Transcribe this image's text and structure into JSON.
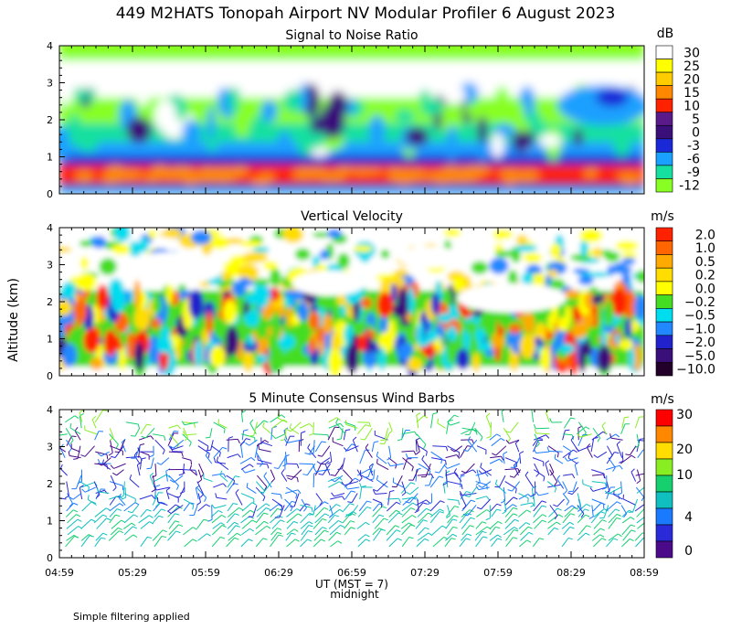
{
  "title": "449 M2HATS Tonopah Airport NV Modular Profiler  6 August 2023",
  "ylabel": "Altitude (km)",
  "xlabel": "UT  (MST = 7)",
  "midnight_label": "midnight",
  "footnote": "Simple filtering applied",
  "x_ticks": [
    "04:59",
    "05:29",
    "05:59",
    "06:29",
    "06:59",
    "07:29",
    "07:59",
    "08:29",
    "08:59"
  ],
  "y_ticks": [
    "0",
    "1",
    "2",
    "3",
    "4"
  ],
  "chart_data": [
    {
      "type": "heatmap",
      "title": "Signal to Noise Ratio",
      "unit": "dB",
      "ylim": [
        0,
        4
      ],
      "xlim": [
        "04:59",
        "08:59"
      ],
      "colorbar": {
        "labels": [
          "30",
          "25",
          "20",
          "15",
          "10",
          "5",
          "0",
          "-3",
          "-6",
          "-9",
          "-12"
        ],
        "colors": [
          "#ffffff",
          "#ffff00",
          "#ffcc00",
          "#ff8800",
          "#ff2200",
          "#5a1a8a",
          "#3b0f7a",
          "#1a28d8",
          "#1aa0ff",
          "#16e0a0",
          "#88ff22"
        ]
      }
    },
    {
      "type": "heatmap",
      "title": "Vertical Velocity",
      "unit": "m/s",
      "ylim": [
        0,
        4
      ],
      "xlim": [
        "04:59",
        "08:59"
      ],
      "colorbar": {
        "labels": [
          "2.0",
          "1.0",
          "0.5",
          "0.2",
          "0.0",
          "−0.2",
          "−0.5",
          "−1.0",
          "−2.0",
          "−5.0",
          "−10.0"
        ],
        "colors": [
          "#ff2200",
          "#ff6600",
          "#ffaa00",
          "#ffdd00",
          "#ffff00",
          "#44dd22",
          "#00ddee",
          "#2288ff",
          "#2222cc",
          "#3b0f7a",
          "#22002a"
        ]
      }
    },
    {
      "type": "scatter",
      "title": "5 Minute Consensus Wind Barbs",
      "unit": "m/s",
      "ylim": [
        0,
        4
      ],
      "xlim": [
        "04:59",
        "08:59"
      ],
      "colorbar": {
        "labels": [
          "30",
          "20",
          "10",
          "4",
          "0"
        ],
        "colors": [
          "#ff0000",
          "#ff8800",
          "#ffdd00",
          "#88ee22",
          "#16d070",
          "#10c0c0",
          "#1a7aff",
          "#2a2ad8",
          "#4a0a8a"
        ]
      }
    }
  ]
}
